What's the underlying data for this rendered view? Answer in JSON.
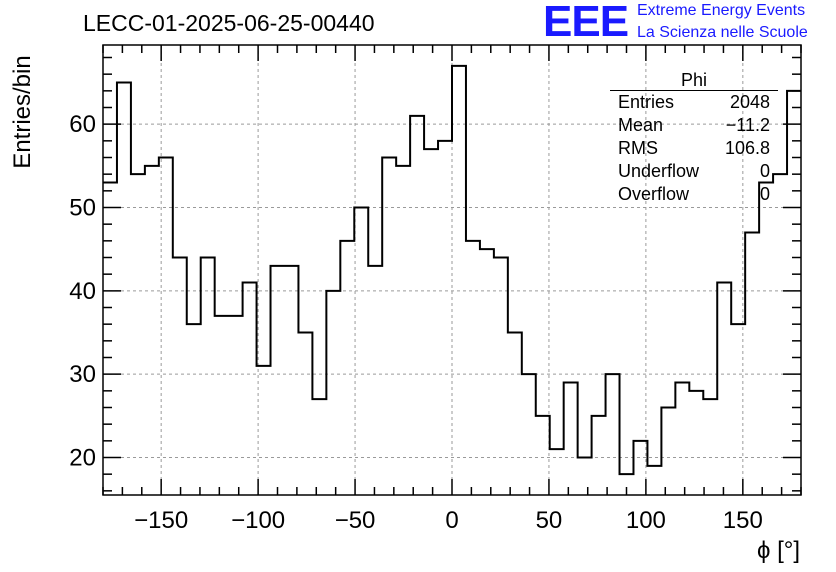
{
  "header": {
    "run_title": "LECC-01-2025-06-25-00440",
    "logo_text": "EEE",
    "logo_line1": "Extreme Energy Events",
    "logo_line2": "La Scienza nelle Scuole"
  },
  "stats_box": {
    "title": "Phi",
    "rows": [
      {
        "key": "Entries",
        "value": "2048"
      },
      {
        "key": "Mean",
        "value": "−11.2"
      },
      {
        "key": "RMS",
        "value": "106.8"
      },
      {
        "key": "Underflow",
        "value": "0"
      },
      {
        "key": "Overflow",
        "value": "0"
      }
    ]
  },
  "chart_data": {
    "type": "bar",
    "histogram": true,
    "title": "LECC-01-2025-06-25-00440",
    "xlabel": "ϕ [°]",
    "ylabel": "Entries/bin",
    "xlim": [
      -180,
      180
    ],
    "ylim": [
      15.5,
      69.5
    ],
    "bin_width": 7.2,
    "x_ticks": [
      -150,
      -100,
      -50,
      0,
      50,
      100,
      150
    ],
    "x_tick_labels": [
      "−150",
      "−100",
      "−50",
      "0",
      "50",
      "100",
      "150"
    ],
    "y_ticks": [
      20,
      30,
      40,
      50,
      60
    ],
    "y_tick_labels": [
      "20",
      "30",
      "40",
      "50",
      "60"
    ],
    "grid": true,
    "line_color": "#000000",
    "values": [
      53,
      65,
      54,
      55,
      56,
      44,
      36,
      44,
      37,
      37,
      41,
      31,
      43,
      43,
      35,
      27,
      40,
      46,
      50,
      43,
      56,
      55,
      61,
      57,
      58,
      67,
      46,
      45,
      44,
      35,
      30,
      25,
      21,
      29,
      20,
      25,
      30,
      18,
      22,
      19,
      26,
      29,
      28,
      27,
      41,
      36,
      47,
      53,
      54,
      64
    ]
  }
}
